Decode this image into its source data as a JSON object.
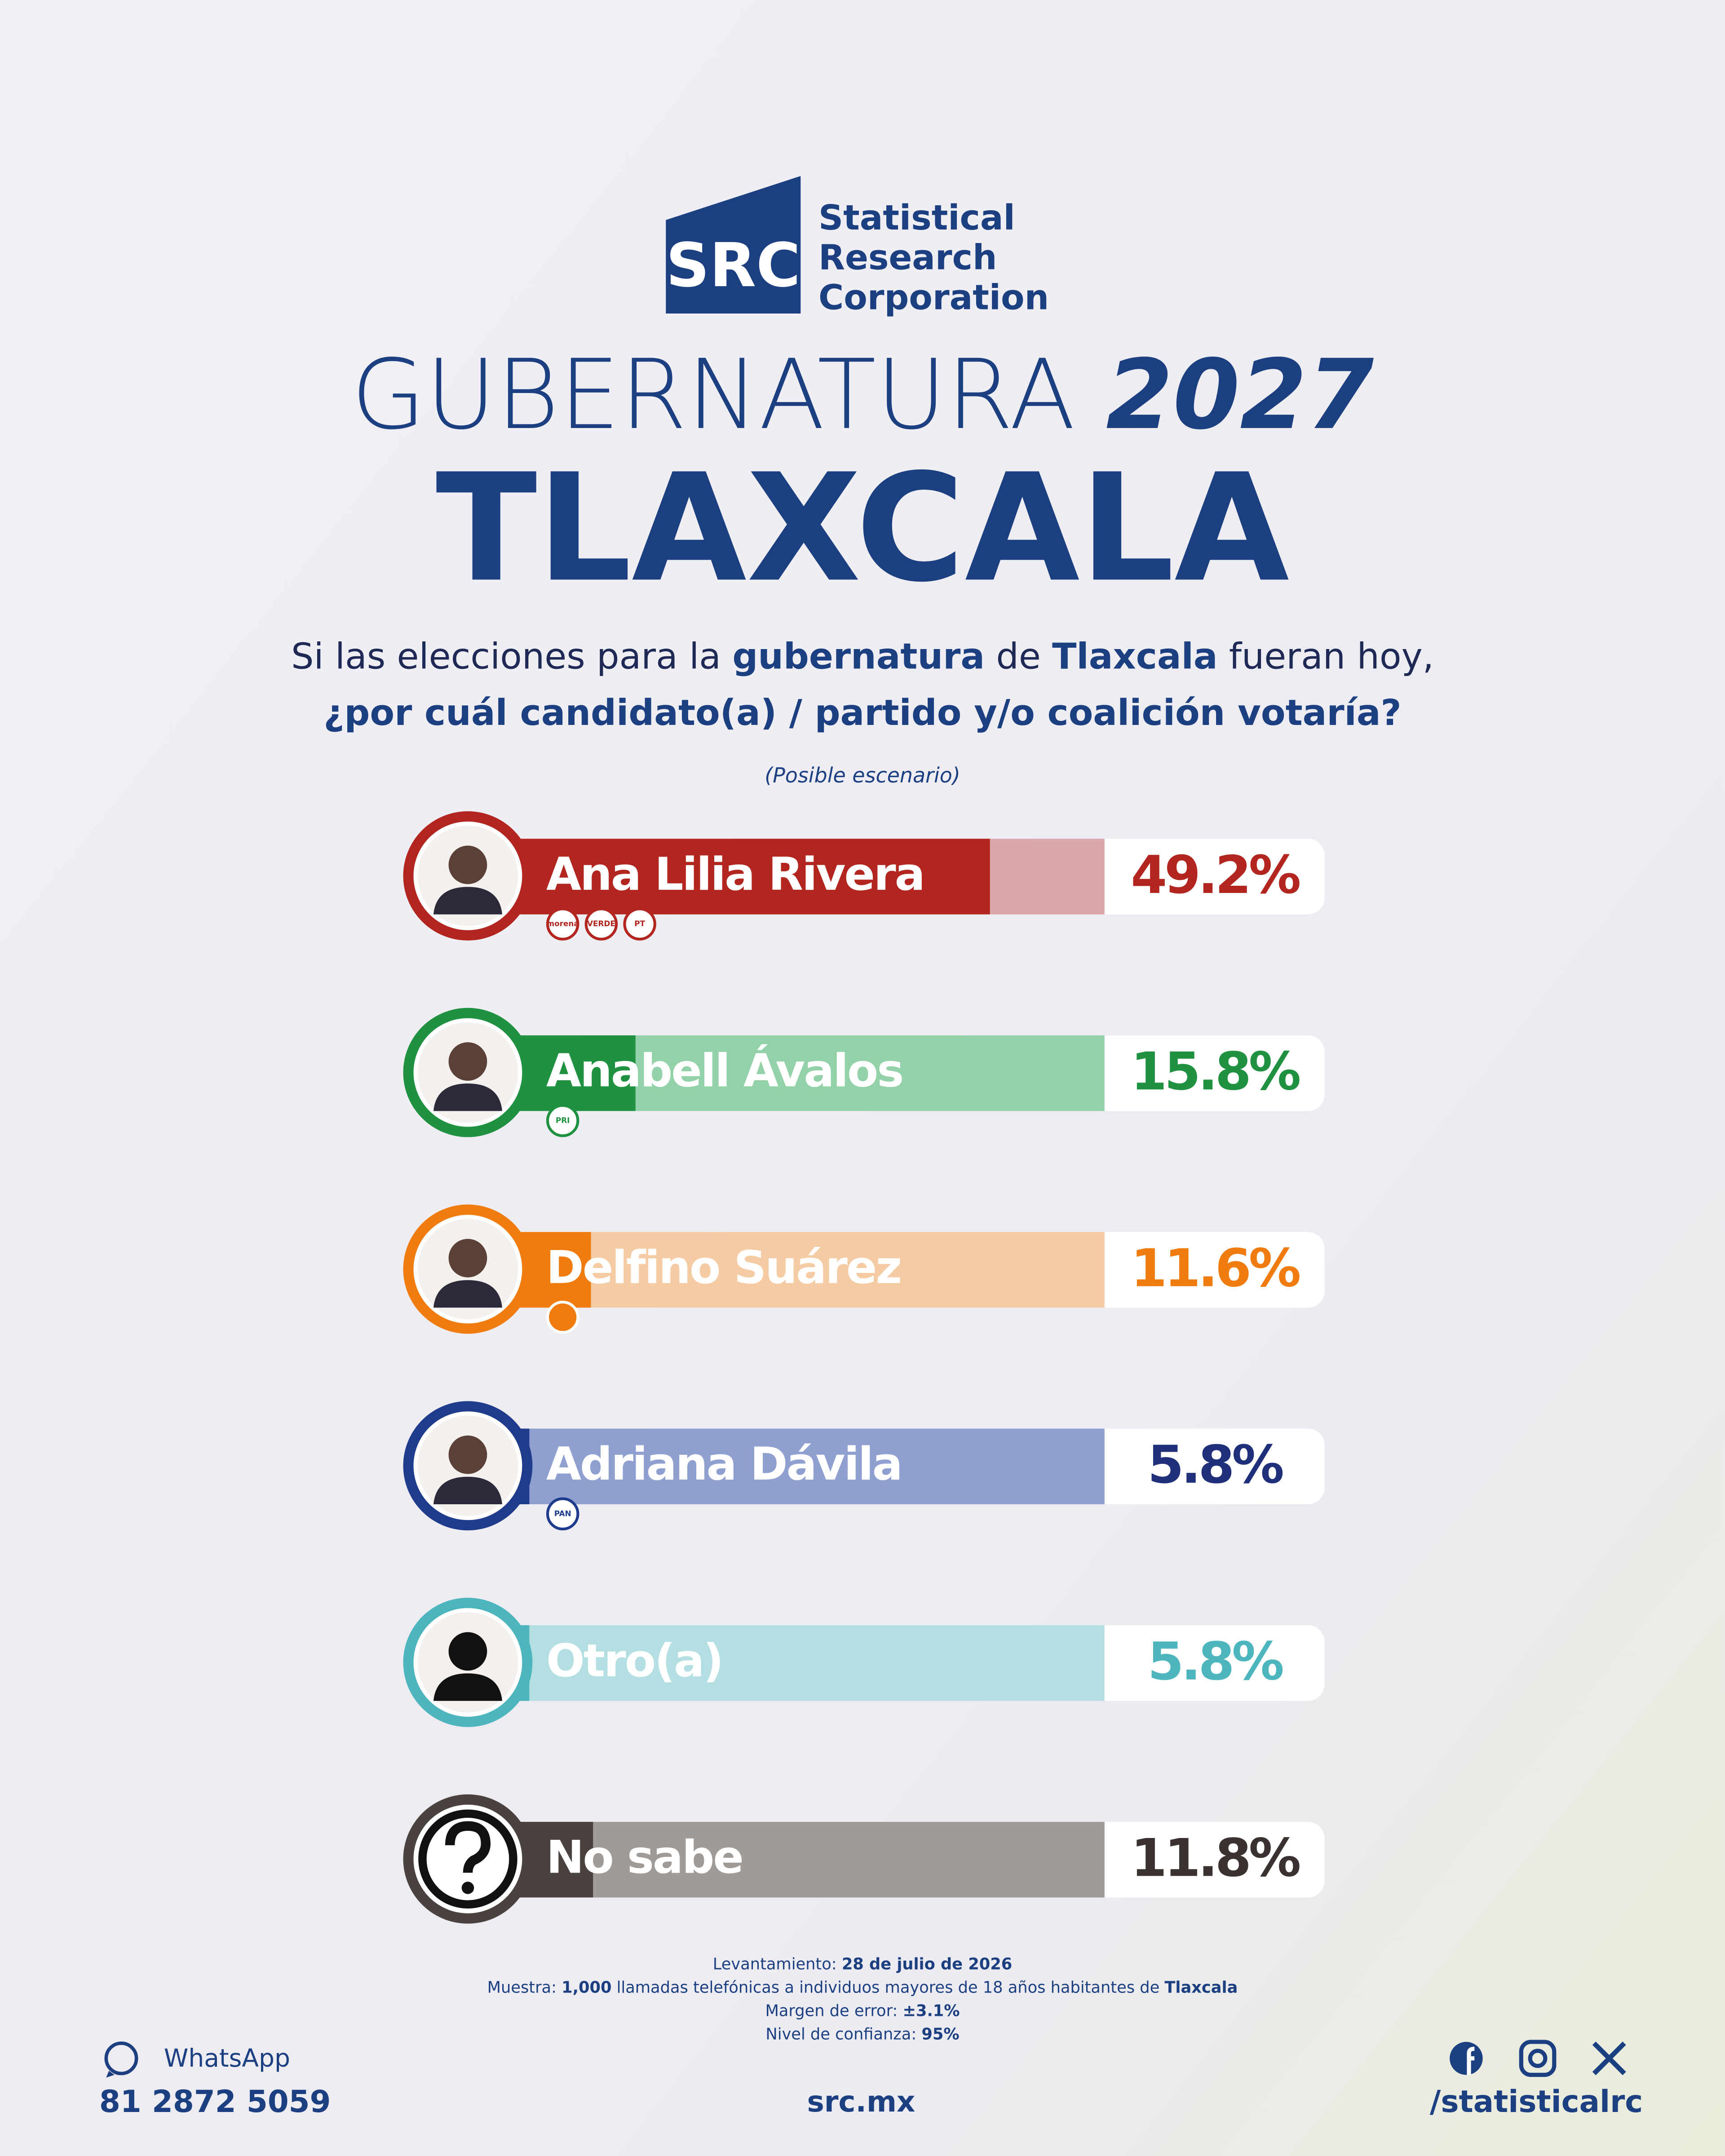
{
  "header": {
    "logo_mark": "SRC",
    "logo_lines": [
      "Statistical",
      "Research",
      "Corporation"
    ],
    "title_light": "GUBERNATURA",
    "title_bold": "2027",
    "state": "TLAXCALA",
    "question": [
      [
        {
          "text": "Si las elecciones para la ",
          "bold": false
        },
        {
          "text": "gubernatura",
          "bold": true
        },
        {
          "text": " de ",
          "bold": false
        },
        {
          "text": "Tlaxcala",
          "bold": true
        },
        {
          "text": " fueran hoy,",
          "bold": false
        }
      ],
      [
        {
          "text": "¿por cuál candidato(a) / partido y/o coalición votaría?",
          "bold": true
        }
      ]
    ],
    "note": "(Posible escenario)"
  },
  "chart_data": {
    "type": "bar",
    "categories": [
      "Ana Lilia Rivera",
      "Anabell Ávalos",
      "Delfino Suárez",
      "Adriana Dávila",
      "Otro(a)",
      "No sabe"
    ],
    "values": [
      49.2,
      15.8,
      11.6,
      5.8,
      5.8,
      11.8
    ],
    "value_labels": [
      "49.2%",
      "15.8%",
      "11.6%",
      "5.8%",
      "5.8%",
      "11.8%"
    ],
    "colors": [
      "#b3251f",
      "#1f9140",
      "#f07c10",
      "#1f3b8c",
      "#4db5bd",
      "#4a423f"
    ],
    "track_colors": [
      "#dba7aa",
      "#93d1a8",
      "#f5cba4",
      "#8f9fcf",
      "#b3dfe3",
      "#a19b98"
    ],
    "label_colors": [
      "#b3251f",
      "#1f9140",
      "#f07c10",
      "#1f2f7a",
      "#4db5bd",
      "#3a3230"
    ],
    "parties": [
      [
        "morena",
        "VERDE",
        "PT"
      ],
      [
        "PRI"
      ],
      [],
      [
        "PAN"
      ],
      [],
      []
    ],
    "xlim": [
      0,
      60
    ]
  },
  "footer": {
    "methodology": [
      [
        {
          "text": "Levantamiento: ",
          "bold": false
        },
        {
          "text": "28 de julio de 2026",
          "bold": true
        }
      ],
      [
        {
          "text": "Muestra: ",
          "bold": false
        },
        {
          "text": "1,000",
          "bold": true
        },
        {
          "text": " llamadas telefónicas a individuos mayores de 18 años habitantes de ",
          "bold": false
        },
        {
          "text": "Tlaxcala",
          "bold": true
        }
      ],
      [
        {
          "text": "Margen de error: ",
          "bold": false
        },
        {
          "text": "±3.1%",
          "bold": true
        }
      ],
      [
        {
          "text": "Nivel de confianza: ",
          "bold": false
        },
        {
          "text": "95%",
          "bold": true
        }
      ]
    ],
    "whatsapp": "WhatsApp",
    "phone": "81 2872 5059",
    "website": "src.mx",
    "handle": "/statisticalrc"
  }
}
